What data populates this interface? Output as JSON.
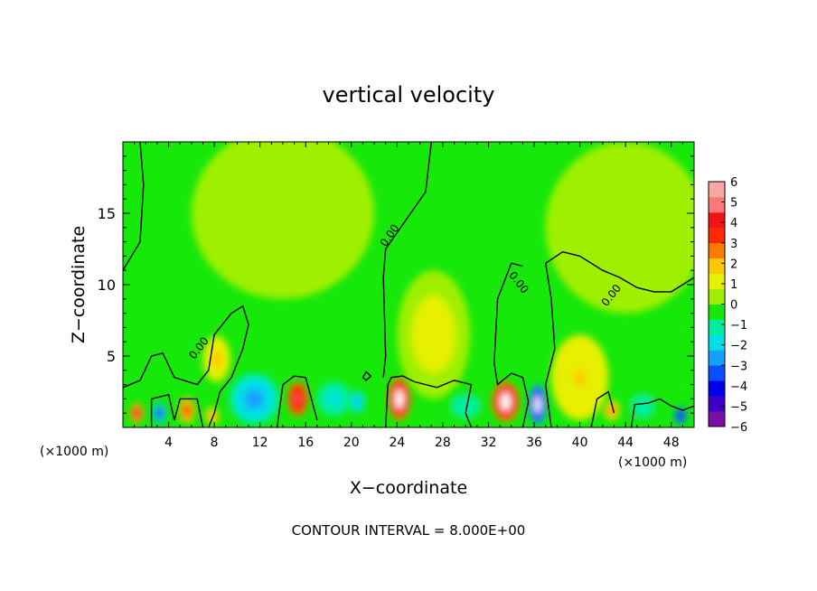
{
  "chart_data": {
    "type": "heatmap",
    "title": "vertical velocity",
    "xlabel": "X−coordinate",
    "ylabel": "Z−coordinate",
    "x_unit_left": "(×1000 m)",
    "x_unit_right": "(×1000 m)",
    "footer": "CONTOUR INTERVAL = 8.000E+00",
    "contour_label": "0.00",
    "xlim": [
      0,
      50
    ],
    "ylim": [
      0,
      20
    ],
    "xticks": [
      4,
      8,
      12,
      16,
      20,
      24,
      28,
      32,
      36,
      40,
      44,
      48
    ],
    "xtick_labels": [
      "4",
      "8",
      "12",
      "16",
      "20",
      "24",
      "28",
      "32",
      "36",
      "40",
      "44",
      "48"
    ],
    "yticks": [
      5,
      10,
      15
    ],
    "ytick_labels": [
      "5",
      "10",
      "15"
    ],
    "colorbar": {
      "min": -6,
      "max": 6,
      "tick_values": [
        6,
        5,
        4,
        3,
        2,
        1,
        0,
        -1,
        -2,
        -3,
        -4,
        -5,
        -6
      ],
      "tick_labels": [
        "6",
        "5",
        "4",
        "3",
        "2",
        "1",
        "0",
        "−1",
        "−2",
        "−3",
        "−4",
        "−5",
        "−6"
      ],
      "colors": [
        "#7a0fa8",
        "#3c00c8",
        "#0000f0",
        "#0a50ff",
        "#14a0ff",
        "#00e0e6",
        "#00eea0",
        "#16e80a",
        "#9ef000",
        "#e6f000",
        "#ffc800",
        "#ff7800",
        "#ff2800",
        "#f01414",
        "#ff7878",
        "#f8a8a0"
      ]
    },
    "features": [
      {
        "x": 1.2,
        "z": 1.0,
        "w": 0.6,
        "h": 0.7,
        "value": 4.5
      },
      {
        "x": 3.2,
        "z": 1.0,
        "w": 0.6,
        "h": 0.7,
        "value": -4.0
      },
      {
        "x": 5.6,
        "z": 1.2,
        "w": 0.7,
        "h": 0.9,
        "value": 3.5
      },
      {
        "x": 7.8,
        "z": 0.8,
        "w": 0.6,
        "h": 0.6,
        "value": 2.5
      },
      {
        "x": 8.2,
        "z": 4.8,
        "w": 1.2,
        "h": 1.6,
        "value": 1.8
      },
      {
        "x": 11.5,
        "z": 2.0,
        "w": 2.2,
        "h": 1.8,
        "value": -3.0
      },
      {
        "x": 15.3,
        "z": 2.0,
        "w": 0.9,
        "h": 1.2,
        "value": 5.0
      },
      {
        "x": 18.5,
        "z": 2.0,
        "w": 1.5,
        "h": 1.2,
        "value": -1.8
      },
      {
        "x": 20.5,
        "z": 1.8,
        "w": 0.7,
        "h": 0.8,
        "value": -2.5
      },
      {
        "x": 24.2,
        "z": 2.0,
        "w": 1.0,
        "h": 1.5,
        "value": 6.0
      },
      {
        "x": 27.2,
        "z": 6.5,
        "w": 3.2,
        "h": 4.5,
        "value": 1.2
      },
      {
        "x": 30.0,
        "z": 1.5,
        "w": 1.5,
        "h": 1.0,
        "value": -1.3
      },
      {
        "x": 33.5,
        "z": 1.8,
        "w": 1.2,
        "h": 1.4,
        "value": 6.0
      },
      {
        "x": 36.3,
        "z": 1.6,
        "w": 0.8,
        "h": 1.4,
        "value": -6.0
      },
      {
        "x": 40.0,
        "z": 3.5,
        "w": 2.5,
        "h": 3.0,
        "value": 1.6
      },
      {
        "x": 42.8,
        "z": 1.2,
        "w": 0.7,
        "h": 0.7,
        "value": 2.8
      },
      {
        "x": 45.5,
        "z": 1.5,
        "w": 1.2,
        "h": 1.0,
        "value": -1.5
      },
      {
        "x": 48.8,
        "z": 0.8,
        "w": 0.5,
        "h": 0.6,
        "value": -5.0
      },
      {
        "x": 14.0,
        "z": 15.0,
        "w": 8.0,
        "h": 6.0,
        "value": 0.35
      },
      {
        "x": 44.0,
        "z": 14.0,
        "w": 7.0,
        "h": 6.0,
        "value": 0.35
      }
    ],
    "contours": [
      [
        [
          0,
          11
        ],
        [
          1.5,
          13
        ],
        [
          1.8,
          17
        ],
        [
          1.5,
          20
        ]
      ],
      [
        [
          0,
          2.8
        ],
        [
          1.5,
          3.3
        ],
        [
          2.5,
          5.0
        ],
        [
          3.5,
          5.2
        ],
        [
          4.5,
          3.5
        ],
        [
          6.5,
          3.0
        ],
        [
          7.5,
          4.0
        ],
        [
          8.0,
          6.5
        ],
        [
          9.5,
          8.0
        ],
        [
          10.5,
          8.5
        ],
        [
          11.0,
          7.2
        ],
        [
          10.5,
          5.5
        ],
        [
          9.5,
          3.5
        ],
        [
          8.5,
          2.5
        ],
        [
          8.0,
          1.0
        ],
        [
          7.5,
          0
        ]
      ],
      [
        [
          2.5,
          0
        ],
        [
          2.5,
          2.0
        ],
        [
          4.0,
          2.3
        ],
        [
          4.5,
          0.5
        ],
        [
          5.0,
          2.0
        ],
        [
          6.5,
          2.0
        ],
        [
          7.0,
          0
        ]
      ],
      [
        [
          13.5,
          0
        ],
        [
          14.0,
          3.0
        ],
        [
          15.0,
          3.6
        ],
        [
          16.0,
          3.5
        ],
        [
          16.5,
          2.0
        ],
        [
          17.0,
          0.5
        ]
      ],
      [
        [
          21.0,
          3.5
        ],
        [
          21.3,
          3.9
        ],
        [
          21.7,
          3.6
        ],
        [
          21.3,
          3.3
        ],
        [
          21.0,
          3.5
        ]
      ],
      [
        [
          23.0,
          0
        ],
        [
          23.2,
          3.0
        ],
        [
          23.5,
          3.5
        ],
        [
          24.5,
          3.6
        ],
        [
          25.5,
          3.2
        ],
        [
          27.5,
          2.8
        ],
        [
          29.0,
          3.3
        ],
        [
          30.5,
          3.0
        ],
        [
          30.0,
          1.0
        ],
        [
          30.5,
          0
        ]
      ],
      [
        [
          27.0,
          20
        ],
        [
          26.5,
          16.5
        ],
        [
          23.0,
          12.5
        ],
        [
          22.8,
          10.5
        ],
        [
          23.0,
          5.0
        ],
        [
          22.8,
          3.5
        ]
      ],
      [
        [
          35.0,
          11.3
        ],
        [
          34.0,
          11.5
        ],
        [
          32.8,
          9.0
        ],
        [
          32.5,
          4.5
        ],
        [
          32.8,
          3.0
        ],
        [
          34.0,
          3.8
        ],
        [
          35.0,
          3.5
        ],
        [
          35.5,
          1.8
        ],
        [
          35.0,
          0
        ]
      ],
      [
        [
          37.5,
          0
        ],
        [
          37.0,
          3.0
        ],
        [
          37.8,
          5.5
        ],
        [
          37.5,
          9.0
        ],
        [
          37.0,
          11.5
        ],
        [
          38.5,
          12.3
        ],
        [
          40.0,
          12.0
        ],
        [
          42.0,
          11.0
        ],
        [
          43.5,
          10.5
        ],
        [
          45.0,
          9.8
        ],
        [
          46.5,
          9.5
        ],
        [
          48.0,
          9.5
        ],
        [
          49.0,
          10.0
        ],
        [
          50,
          10.5
        ]
      ],
      [
        [
          41.0,
          0
        ],
        [
          41.5,
          2.0
        ],
        [
          42.5,
          2.5
        ],
        [
          43.0,
          1.0
        ]
      ],
      [
        [
          44.5,
          0
        ],
        [
          44.8,
          1.6
        ],
        [
          46.0,
          1.7
        ],
        [
          47.0,
          2.0
        ],
        [
          48.0,
          1.5
        ],
        [
          49.0,
          1.2
        ],
        [
          50,
          1.5
        ]
      ]
    ],
    "contour_labels": [
      {
        "x": 6.9,
        "z": 5.4,
        "angle": -52
      },
      {
        "x": 23.6,
        "z": 13.3,
        "angle": -55
      },
      {
        "x": 34.4,
        "z": 10.0,
        "angle": 52
      },
      {
        "x": 43.0,
        "z": 9.1,
        "angle": -52
      }
    ]
  }
}
